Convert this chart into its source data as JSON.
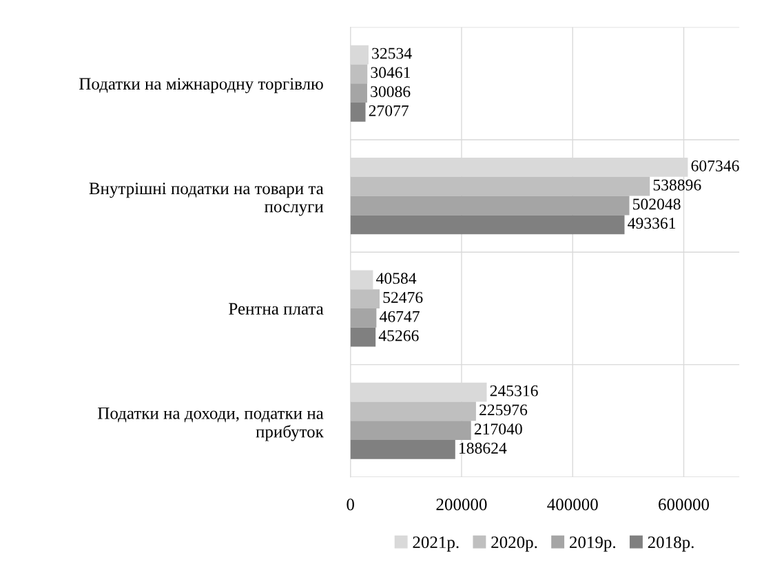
{
  "chart_data": {
    "type": "bar",
    "orientation": "horizontal",
    "categories": [
      "Податки на міжнародну торгівлю",
      "Внутрішні податки на товари та\nпослуги",
      "Рентна плата",
      "Податки на доходи, податки на\nприбуток"
    ],
    "series": [
      {
        "name": "2021р.",
        "color": "#d9d9d9",
        "values": [
          32534,
          607346,
          40584,
          245316
        ]
      },
      {
        "name": "2020р.",
        "color": "#bfbfbf",
        "values": [
          30461,
          538896,
          52476,
          225976
        ]
      },
      {
        "name": "2019р.",
        "color": "#a5a5a5",
        "values": [
          30086,
          502048,
          46747,
          217040
        ]
      },
      {
        "name": "2018р.",
        "color": "#808080",
        "values": [
          27077,
          493361,
          45266,
          188624
        ]
      }
    ],
    "xlim": [
      0,
      700000
    ],
    "xticks": [
      0,
      200000,
      400000,
      600000
    ],
    "grid": true,
    "legend": "bottom",
    "data_labels": true
  }
}
